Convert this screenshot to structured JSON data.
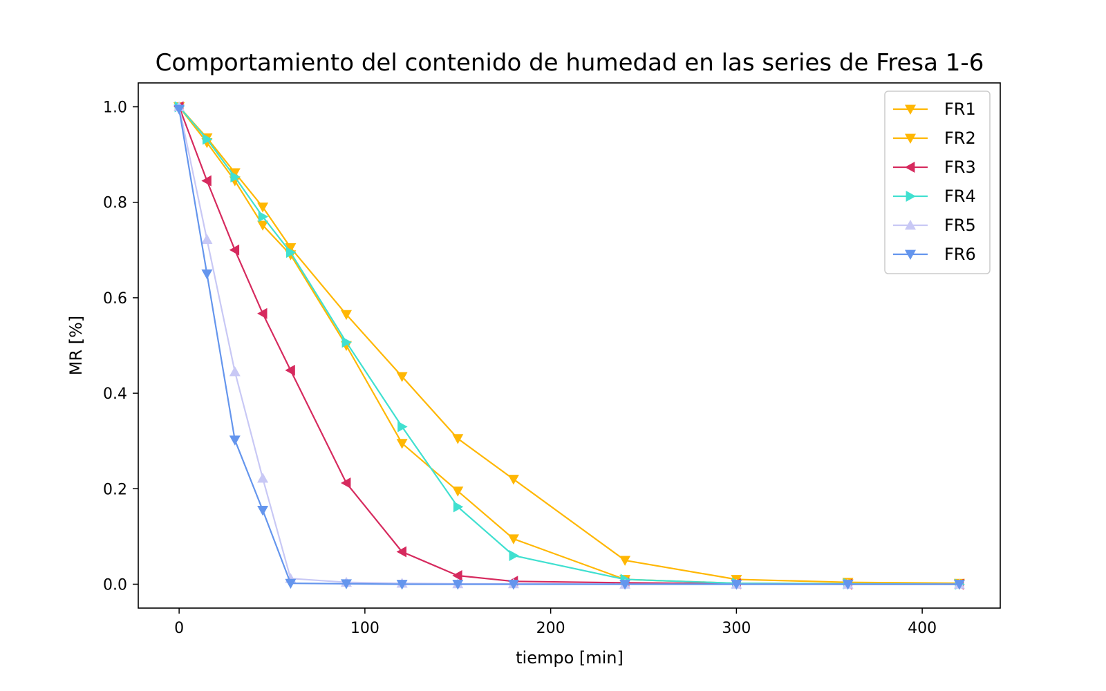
{
  "chart_data": {
    "type": "line",
    "title": "Comportamiento del contenido de humedad en las series de Fresa 1-6",
    "xlabel": "tiempo [min]",
    "ylabel": "MR [%]",
    "xlim": [
      -22,
      442
    ],
    "ylim": [
      -0.05,
      1.05
    ],
    "xticks": [
      0,
      100,
      200,
      300,
      400
    ],
    "yticks": [
      0.0,
      0.2,
      0.4,
      0.6,
      0.8,
      1.0
    ],
    "xtick_labels": [
      "0",
      "100",
      "200",
      "300",
      "400"
    ],
    "ytick_labels": [
      "0.0",
      "0.2",
      "0.4",
      "0.6",
      "0.8",
      "1.0"
    ],
    "grid": false,
    "legend_position": "top-right",
    "series": [
      {
        "name": "FR1",
        "color": "#FFB703",
        "marker": "triangle-down",
        "x": [
          0,
          15,
          30,
          45,
          60,
          90,
          120,
          150,
          180,
          240,
          300,
          360,
          420
        ],
        "y": [
          1.0,
          0.935,
          0.862,
          0.79,
          0.705,
          0.565,
          0.435,
          0.305,
          0.22,
          0.05,
          0.01,
          0.004,
          0.002
        ]
      },
      {
        "name": "FR2",
        "color": "#FFB703",
        "marker": "triangle-down",
        "x": [
          0,
          15,
          30,
          45,
          60,
          90,
          120,
          150,
          180,
          240,
          300,
          360,
          420
        ],
        "y": [
          1.0,
          0.925,
          0.845,
          0.752,
          0.69,
          0.5,
          0.295,
          0.195,
          0.095,
          0.01,
          0.002,
          0.001,
          0.0
        ]
      },
      {
        "name": "FR3",
        "color": "#D62A5E",
        "marker": "triangle-left",
        "x": [
          0,
          15,
          30,
          45,
          60,
          90,
          120,
          150,
          180,
          240,
          300,
          360,
          420
        ],
        "y": [
          1.0,
          0.845,
          0.7,
          0.567,
          0.448,
          0.212,
          0.068,
          0.018,
          0.006,
          0.003,
          0.001,
          0.0,
          0.0
        ]
      },
      {
        "name": "FR4",
        "color": "#40E0D0",
        "marker": "triangle-right",
        "x": [
          0,
          15,
          30,
          45,
          60,
          90,
          120,
          150,
          180,
          240,
          300,
          360,
          420
        ],
        "y": [
          1.0,
          0.932,
          0.853,
          0.77,
          0.695,
          0.507,
          0.33,
          0.162,
          0.06,
          0.01,
          0.002,
          0.001,
          0.0
        ]
      },
      {
        "name": "FR5",
        "color": "#C8C8F5",
        "marker": "triangle-up",
        "x": [
          0,
          15,
          30,
          45,
          60,
          90,
          120,
          150,
          180,
          240,
          300,
          360,
          420
        ],
        "y": [
          1.0,
          0.722,
          0.445,
          0.222,
          0.012,
          0.004,
          0.002,
          0.001,
          0.001,
          0.0,
          0.0,
          0.0,
          0.0
        ]
      },
      {
        "name": "FR6",
        "color": "#6495ED",
        "marker": "triangle-down",
        "x": [
          0,
          15,
          30,
          45,
          60,
          90,
          120,
          150,
          180,
          240,
          300,
          360,
          420
        ],
        "y": [
          0.995,
          0.65,
          0.302,
          0.155,
          0.002,
          0.001,
          0.0,
          0.0,
          0.0,
          0.0,
          0.0,
          0.0,
          0.0
        ]
      }
    ]
  }
}
